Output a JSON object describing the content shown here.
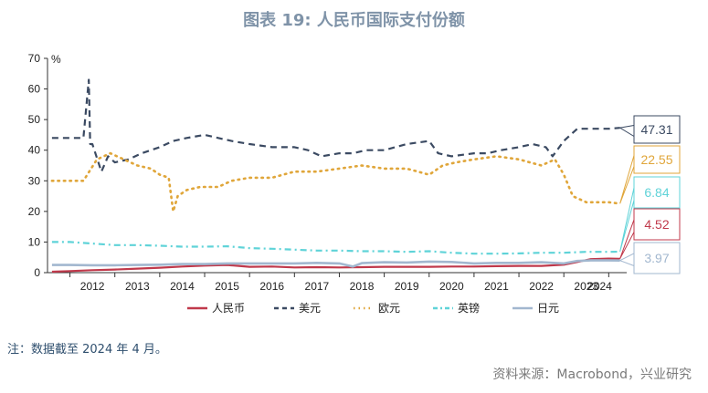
{
  "title": "图表 19: 人民币国际支付份额",
  "note": "注：数据截至 2024 年 4 月。",
  "source": "资料来源：Macrobond，兴业研究",
  "colors": {
    "cny": "#c0394b",
    "usd": "#3b4a62",
    "eur": "#e0a63a",
    "gbp": "#5fd3d8",
    "jpy": "#a2b7cf"
  },
  "chart_data": {
    "type": "line",
    "ylabel": "%",
    "ylim": [
      0,
      70
    ],
    "yticks": [
      0,
      10,
      20,
      30,
      40,
      50,
      60,
      70
    ],
    "xlim": [
      2011.5,
      2024.4
    ],
    "xtick_labels": [
      "2012",
      "2013",
      "2014",
      "2015",
      "2016",
      "2017",
      "2018",
      "2019",
      "2020",
      "2021",
      "2022",
      "2023",
      "2024"
    ],
    "xtick_pos": [
      2012,
      2013,
      2014,
      2015,
      2016,
      2017,
      2018,
      2019,
      2020,
      2021,
      2022,
      2023,
      2023.8
    ],
    "legend_position": "bottom",
    "series": [
      {
        "key": "cny",
        "name": "人民币",
        "style": "solid",
        "end_label": "4.52",
        "x": [
          2011.6,
          2012,
          2012.5,
          2013,
          2013.5,
          2014,
          2014.5,
          2015,
          2015.5,
          2016,
          2016.5,
          2017,
          2017.5,
          2018,
          2018.5,
          2019,
          2019.5,
          2020,
          2020.5,
          2021,
          2021.5,
          2022,
          2022.5,
          2023,
          2023.3,
          2023.6,
          2024.0,
          2024.25
        ],
        "y": [
          0.3,
          0.5,
          0.8,
          1.0,
          1.3,
          1.6,
          2.0,
          2.3,
          2.5,
          1.9,
          2.0,
          1.7,
          1.8,
          1.7,
          1.8,
          1.9,
          1.9,
          1.9,
          2.0,
          2.0,
          2.1,
          2.2,
          2.2,
          2.6,
          3.5,
          4.4,
          4.6,
          4.52
        ]
      },
      {
        "key": "usd",
        "name": "美元",
        "style": "dash",
        "end_label": "47.31",
        "x": [
          2011.6,
          2012,
          2012.3,
          2012.42,
          2012.45,
          2012.5,
          2012.7,
          2012.85,
          2013,
          2013.3,
          2013.6,
          2014,
          2014.3,
          2014.6,
          2015,
          2015.3,
          2015.6,
          2016,
          2016.5,
          2017,
          2017.3,
          2017.6,
          2018,
          2018.3,
          2018.6,
          2019,
          2019.5,
          2020,
          2020.2,
          2020.5,
          2021,
          2021.3,
          2021.6,
          2022,
          2022.3,
          2022.6,
          2022.75,
          2023,
          2023.3,
          2023.6,
          2024.0,
          2024.25
        ],
        "y": [
          44,
          44,
          44,
          63,
          42,
          42,
          33,
          38,
          36,
          37,
          39,
          41,
          43,
          44,
          45,
          44,
          43,
          42,
          41,
          41,
          40,
          38,
          39,
          39,
          40,
          40,
          42,
          43,
          39,
          38,
          39,
          39,
          40,
          41,
          42,
          41,
          38,
          43,
          47,
          47,
          47,
          47.31
        ]
      },
      {
        "key": "eur",
        "name": "欧元",
        "style": "dot",
        "end_label": "22.55",
        "x": [
          2011.6,
          2012,
          2012.3,
          2012.6,
          2012.9,
          2013.2,
          2013.5,
          2013.8,
          2014,
          2014.2,
          2014.3,
          2014.4,
          2014.6,
          2014.9,
          2015.3,
          2015.6,
          2016,
          2016.5,
          2017,
          2017.5,
          2018,
          2018.5,
          2019,
          2019.5,
          2020,
          2020.3,
          2020.6,
          2021,
          2021.5,
          2022,
          2022.5,
          2022.8,
          2023,
          2023.2,
          2023.5,
          2024.0,
          2024.25
        ],
        "y": [
          30,
          30,
          30,
          37,
          39,
          37,
          35,
          34,
          32,
          31,
          20,
          25,
          27,
          28,
          28,
          30,
          31,
          31,
          33,
          33,
          34,
          35,
          34,
          34,
          32,
          35,
          36,
          37,
          38,
          37,
          35,
          37,
          32,
          25,
          23,
          23,
          22.55
        ]
      },
      {
        "key": "gbp",
        "name": "英镑",
        "style": "dashdot",
        "end_label": "6.84",
        "x": [
          2011.6,
          2012,
          2012.5,
          2013,
          2013.5,
          2014,
          2014.5,
          2015,
          2015.5,
          2016,
          2016.5,
          2017,
          2017.5,
          2018,
          2018.5,
          2019,
          2019.5,
          2020,
          2020.5,
          2021,
          2021.5,
          2022,
          2022.5,
          2023,
          2023.5,
          2024.0,
          2024.25
        ],
        "y": [
          10,
          10,
          9.5,
          9,
          9,
          8.8,
          8.5,
          8.5,
          8.6,
          8,
          7.8,
          7.5,
          7.2,
          7.2,
          7,
          7,
          6.8,
          7,
          6.5,
          6.2,
          6.2,
          6.3,
          6.5,
          6.5,
          6.8,
          6.8,
          6.84
        ]
      },
      {
        "key": "jpy",
        "name": "日元",
        "style": "solid",
        "end_label": "3.97",
        "x": [
          2011.6,
          2012,
          2012.5,
          2013,
          2013.5,
          2014,
          2014.5,
          2015,
          2015.5,
          2016,
          2016.5,
          2017,
          2017.5,
          2018,
          2018.3,
          2018.5,
          2019,
          2019.5,
          2020,
          2020.5,
          2021,
          2021.5,
          2022,
          2022.5,
          2023,
          2023.3,
          2023.6,
          2024.0,
          2024.25
        ],
        "y": [
          2.5,
          2.5,
          2.4,
          2.4,
          2.5,
          2.6,
          2.8,
          2.8,
          3,
          3,
          3,
          3,
          3.2,
          3,
          2,
          3.1,
          3.4,
          3.3,
          3.6,
          3.5,
          3,
          3.2,
          3.2,
          3.4,
          3,
          3.8,
          4,
          4,
          3.97
        ]
      }
    ]
  }
}
